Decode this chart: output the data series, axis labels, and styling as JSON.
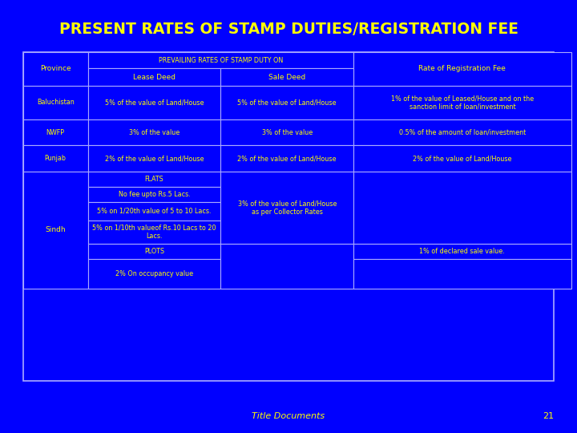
{
  "title": "PRESENT RATES OF STAMP DUTIES/REGISTRATION FEE",
  "bg_color": "#0000FF",
  "title_color": "#FFFF00",
  "text_color": "#FFFF00",
  "border_color": "#AAAAFF",
  "footer_text": "Title Documents",
  "footer_page": "21",
  "table": {
    "col_headers": [
      "Province",
      "PREVAILING RATES OF STAMP DUTY ON\nLease Deed",
      "PREVAILING RATES OF STAMP DUTY ON\nSale Deed",
      "Rate of Registration Fee"
    ],
    "sub_headers": [
      "",
      "Lease Deed",
      "Sale Deed",
      ""
    ],
    "rows": [
      {
        "province": "Baluchistan",
        "lease": "5% of the value of Land/House",
        "sale": "5% of the value of Land/House",
        "reg": "1% of the value of Leased/House and on the\nsanction limit of loan/investment"
      },
      {
        "province": "NWFP",
        "lease": "3% of the value",
        "sale": "3% of the value",
        "reg": "0.5% of the amount of loan/investment"
      },
      {
        "province": "Punjab",
        "lease": "2% of the value of Land/House",
        "sale": "2% of the value of Land/House",
        "reg": "2% of the value of Land/House"
      },
      {
        "province": "Sindh",
        "lease": "FLATS\n\nNo fee upto Rs.5 Lacs.\n\n5% on 1/20th value of 5 to 10 Lacs.\n\n5% on 1/10th valueof Rs.10 Lacs to 20\nLacs.\n\nPLOTS\n\n2% On occupancy value",
        "sale": "3% of the value of Land/House\nas per Collector Rates",
        "reg": "1% of declared sale value."
      }
    ]
  }
}
